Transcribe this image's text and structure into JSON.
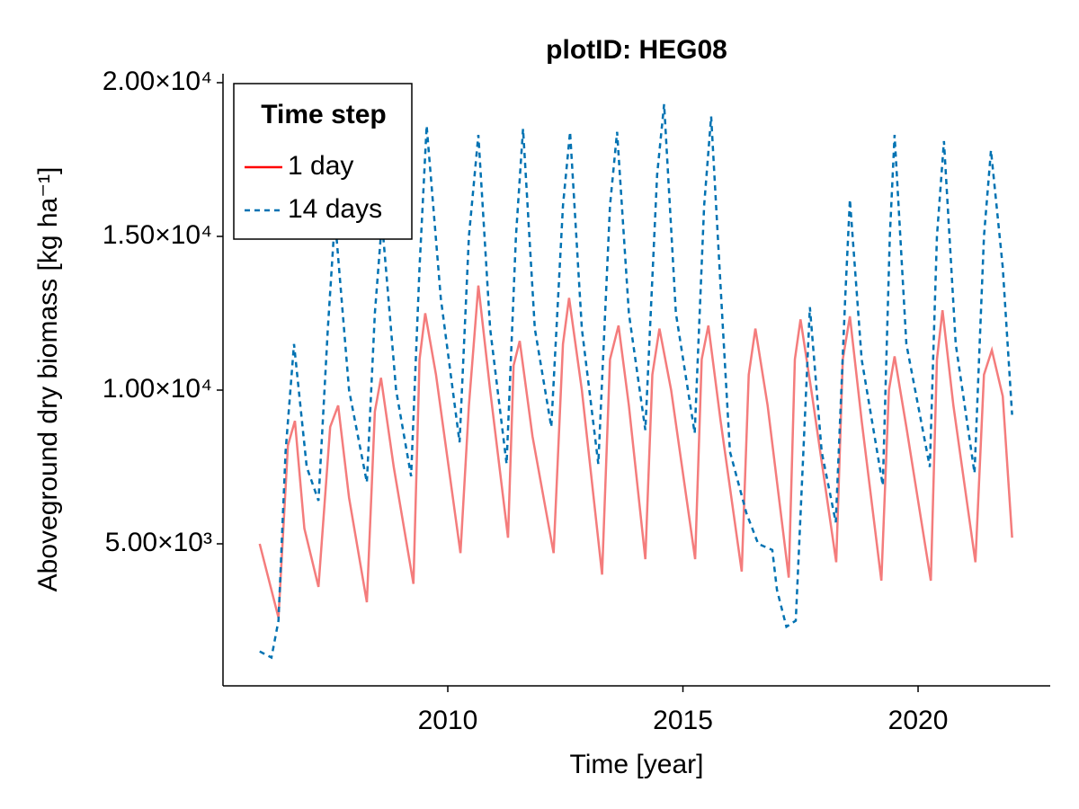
{
  "chart_data": {
    "type": "line",
    "title": "plotID: HEG08",
    "x_label": "Time [year]",
    "y_label": "Aboveground dry biomass [kg ha⁻¹]",
    "xlim": [
      2005.22,
      2022.81
    ],
    "xticks": [
      2010,
      2015,
      2020
    ],
    "ylim": [
      380,
      20292
    ],
    "yticks": [
      {
        "value": 5000,
        "label": "5.00×10³"
      },
      {
        "value": 10000,
        "label": "1.00×10⁴"
      },
      {
        "value": 15000,
        "label": "1.50×10⁴"
      },
      {
        "value": 20000,
        "label": "2.00×10⁴"
      }
    ],
    "grid": false,
    "legend_title": "Time step",
    "legend_position": "upper-left",
    "series": [
      {
        "name": "1 day",
        "color": "#f47c7c",
        "legend_color": "#ff0000",
        "style": "solid",
        "x": [
          2006.0,
          2006.4,
          2006.6,
          2006.75,
          2006.95,
          2007.25,
          2007.5,
          2007.67,
          2007.9,
          2008.28,
          2008.45,
          2008.58,
          2008.85,
          2009.27,
          2009.4,
          2009.52,
          2009.75,
          2010.27,
          2010.45,
          2010.65,
          2010.9,
          2011.28,
          2011.4,
          2011.53,
          2011.8,
          2012.25,
          2012.45,
          2012.58,
          2012.85,
          2013.28,
          2013.45,
          2013.63,
          2013.85,
          2014.2,
          2014.35,
          2014.5,
          2014.75,
          2015.26,
          2015.4,
          2015.54,
          2015.8,
          2016.25,
          2016.4,
          2016.54,
          2016.8,
          2017.25,
          2017.38,
          2017.5,
          2017.75,
          2018.26,
          2018.4,
          2018.55,
          2018.8,
          2019.22,
          2019.38,
          2019.5,
          2019.75,
          2020.27,
          2020.4,
          2020.52,
          2020.75,
          2021.22,
          2021.4,
          2021.57,
          2021.8,
          2022.0
        ],
        "values": [
          5000,
          2600,
          8200,
          9000,
          5500,
          3600,
          8800,
          9500,
          6500,
          3100,
          9300,
          10400,
          7500,
          3700,
          11000,
          12500,
          10500,
          4700,
          9500,
          13400,
          10000,
          5200,
          10800,
          11600,
          8500,
          4700,
          11500,
          13000,
          10000,
          4000,
          11000,
          12100,
          9500,
          4500,
          10500,
          12000,
          10000,
          4500,
          11000,
          12100,
          9000,
          4100,
          10500,
          12000,
          9500,
          3900,
          11000,
          12300,
          9800,
          4400,
          11000,
          12400,
          9000,
          3800,
          10000,
          11100,
          8800,
          3800,
          11000,
          12600,
          9500,
          4400,
          10500,
          11300,
          9800,
          5200
        ]
      },
      {
        "name": "14 days",
        "color": "#0072b2",
        "legend_color": "#0072b2",
        "style": "dashed",
        "x": [
          2006.0,
          2006.25,
          2006.4,
          2006.55,
          2006.73,
          2007.0,
          2007.25,
          2007.45,
          2007.6,
          2007.9,
          2008.28,
          2008.45,
          2008.6,
          2008.9,
          2009.22,
          2009.4,
          2009.55,
          2009.85,
          2010.25,
          2010.45,
          2010.65,
          2010.9,
          2011.25,
          2011.45,
          2011.6,
          2011.85,
          2012.2,
          2012.45,
          2012.6,
          2012.85,
          2013.2,
          2013.45,
          2013.6,
          2013.85,
          2014.2,
          2014.45,
          2014.6,
          2014.85,
          2015.25,
          2015.45,
          2015.6,
          2015.85,
          2016.0,
          2016.35,
          2016.6,
          2016.9,
          2017.0,
          2017.2,
          2017.4,
          2017.7,
          2017.95,
          2018.25,
          2018.45,
          2018.55,
          2018.8,
          2019.25,
          2019.4,
          2019.5,
          2019.75,
          2020.25,
          2020.4,
          2020.55,
          2020.8,
          2021.2,
          2021.4,
          2021.55,
          2021.8,
          2022.0
        ],
        "values": [
          1500,
          1300,
          2500,
          8000,
          11500,
          7500,
          6400,
          12000,
          15600,
          10000,
          7000,
          12500,
          15500,
          10000,
          7200,
          14000,
          18600,
          13000,
          8300,
          15000,
          18300,
          12000,
          7600,
          15000,
          18500,
          12000,
          8800,
          16000,
          18400,
          12000,
          7600,
          16000,
          18400,
          12500,
          8700,
          17000,
          19300,
          12500,
          8600,
          16000,
          18900,
          12000,
          8000,
          6000,
          5000,
          4800,
          3500,
          2300,
          2500,
          12700,
          8000,
          5700,
          13000,
          16200,
          11000,
          6900,
          15000,
          18300,
          11500,
          7500,
          15000,
          18100,
          11500,
          7300,
          15000,
          17800,
          14000,
          9200
        ]
      }
    ]
  }
}
